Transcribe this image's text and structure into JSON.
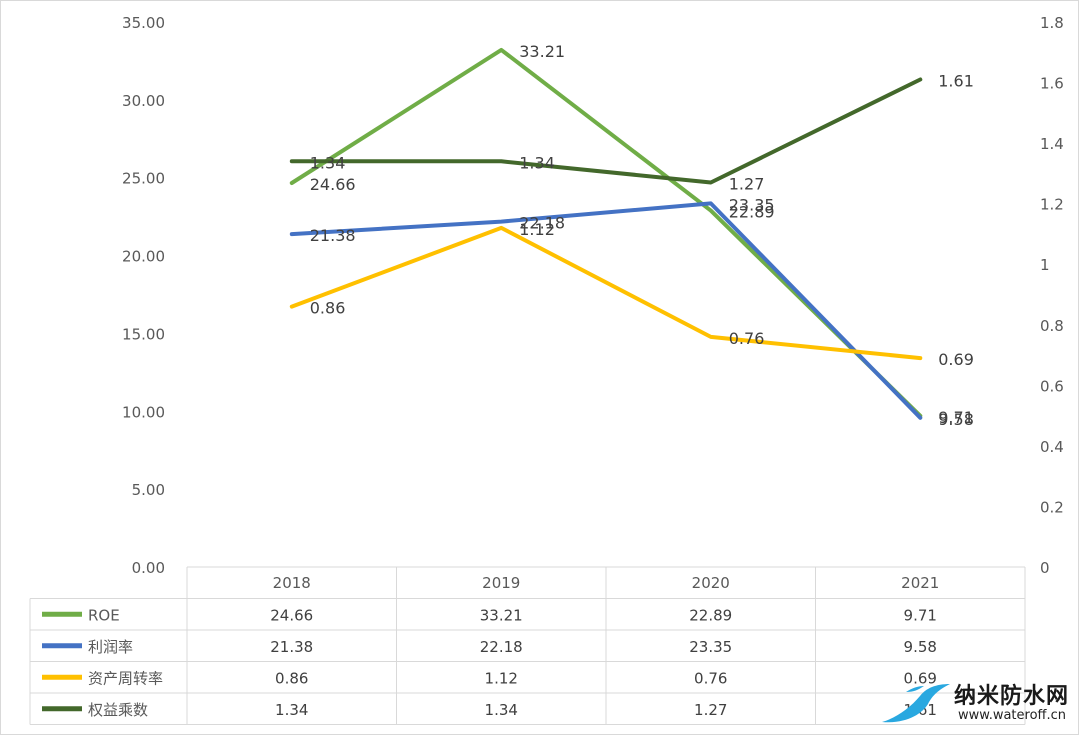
{
  "chart_data": {
    "type": "line",
    "categories": [
      "2018",
      "2019",
      "2020",
      "2021"
    ],
    "y_left": {
      "min": 0,
      "max": 35,
      "step": 5,
      "tick_decimals": 2
    },
    "y_right": {
      "min": 0,
      "max": 1.8,
      "step": 0.2
    },
    "grid": false,
    "legend": "data-table",
    "series": [
      {
        "name": "ROE",
        "axis": "left",
        "color": "#70ad47",
        "values": [
          24.66,
          33.21,
          22.89,
          9.71
        ],
        "labels": [
          "24.66",
          "33.21",
          "22.89",
          "9.71"
        ]
      },
      {
        "name": "利润率",
        "axis": "left",
        "color": "#4472c4",
        "values": [
          21.38,
          22.18,
          23.35,
          9.58
        ],
        "labels": [
          "21.38",
          "22.18",
          "23.35",
          "9.58"
        ]
      },
      {
        "name": "资产周转率",
        "axis": "right",
        "color": "#ffc000",
        "values": [
          0.86,
          1.12,
          0.76,
          0.69
        ],
        "labels": [
          "0.86",
          "1.12",
          "0.76",
          "0.69"
        ]
      },
      {
        "name": "权益乘数",
        "axis": "right",
        "color": "#43682b",
        "values": [
          1.34,
          1.34,
          1.27,
          1.61
        ],
        "labels": [
          "1.34",
          "1.34",
          "1.27",
          "1.61"
        ]
      }
    ]
  },
  "watermark": {
    "title": "纳米防水网",
    "url": "www.wateroff.cn",
    "logo_color": "#29a8e0"
  }
}
